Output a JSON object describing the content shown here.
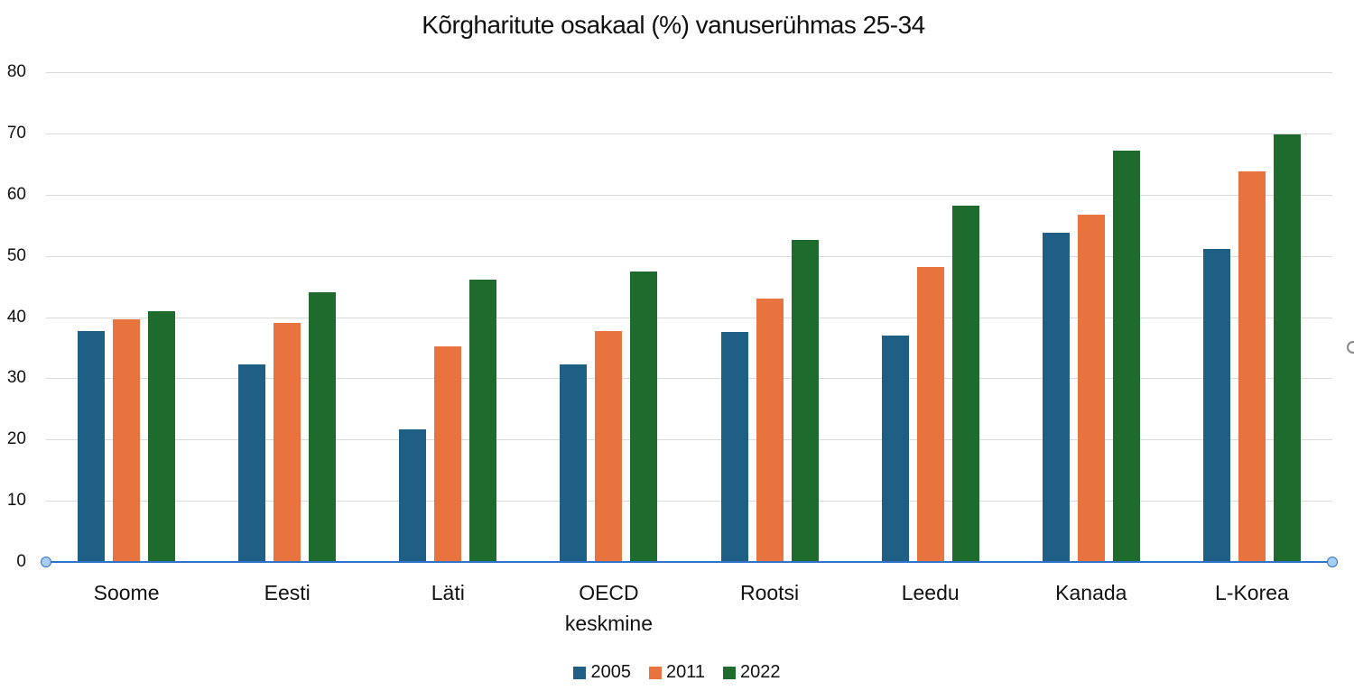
{
  "chart_data": {
    "type": "bar",
    "title": "Kõrgharitute osakaal  (%) vanuserühmas 25-34",
    "xlabel": "",
    "ylabel": "",
    "ylim": [
      0,
      80
    ],
    "yticks": [
      0,
      10,
      20,
      30,
      40,
      50,
      60,
      70,
      80
    ],
    "grid": true,
    "legend_position": "bottom",
    "categories": [
      "Soome",
      "Eesti",
      "Läti",
      "OECD keskmine",
      "Rootsi",
      "Leedu",
      "Kanada",
      "L-Korea"
    ],
    "series": [
      {
        "name": "2005",
        "color": "#1f5f85",
        "values": [
          37.6,
          32.1,
          21.5,
          32.1,
          37.4,
          36.9,
          53.7,
          51.0
        ]
      },
      {
        "name": "2011",
        "color": "#e8733f",
        "values": [
          39.5,
          38.9,
          35.0,
          37.6,
          42.9,
          48.1,
          56.6,
          63.6
        ]
      },
      {
        "name": "2022",
        "color": "#1f6b2d",
        "values": [
          40.8,
          43.9,
          46.0,
          47.3,
          52.4,
          58.1,
          67.1,
          69.7
        ]
      }
    ]
  },
  "labels": {
    "categories_display": [
      [
        "Soome"
      ],
      [
        "Eesti"
      ],
      [
        "Läti"
      ],
      [
        "OECD",
        "keskmine"
      ],
      [
        "Rootsi"
      ],
      [
        "Leedu"
      ],
      [
        "Kanada"
      ],
      [
        "L-Korea"
      ]
    ]
  }
}
